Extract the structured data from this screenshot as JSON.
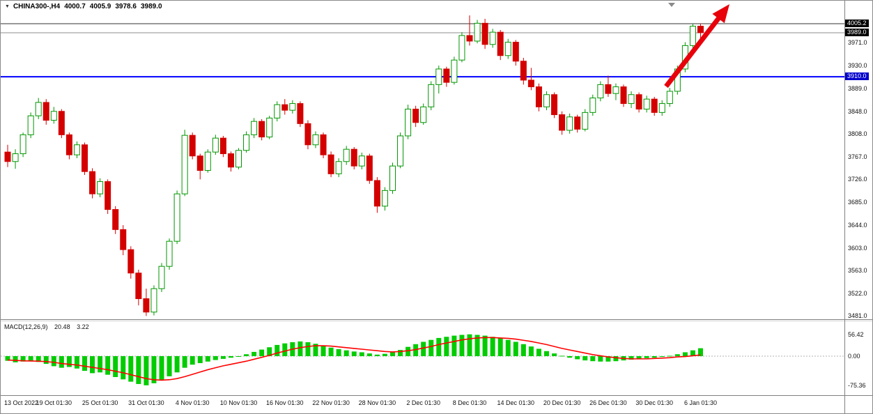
{
  "header": {
    "dropdown_icon": "▼",
    "symbol": "CHINA300-,H4",
    "ohlc": {
      "open": "4000.7",
      "high": "4005.9",
      "low": "3978.6",
      "close": "3989.0"
    }
  },
  "indicator_panel": {
    "label": "MACD(12,26,9)",
    "main_value": "20.48",
    "signal_value": "3.22",
    "axis_values": [
      56.42,
      0,
      -75.36
    ]
  },
  "price_axis": {
    "ticks": [
      3971.0,
      3930.0,
      3889.0,
      3848.0,
      3808.0,
      3767.0,
      3726.0,
      3685.0,
      3644.0,
      3603.0,
      3563.0,
      3522.0,
      3481.0
    ],
    "badges": [
      {
        "value": 4005.2,
        "bg": "#000000",
        "fg": "#ffffff"
      },
      {
        "value": 3989.0,
        "bg": "#000000",
        "fg": "#ffffff"
      },
      {
        "value": 3910.0,
        "bg": "#0000cc",
        "fg": "#ffffff"
      }
    ]
  },
  "time_axis": {
    "labels": [
      {
        "text": "13 Oct 2022",
        "index": 0
      },
      {
        "text": "19 Oct 01:30",
        "index": 6
      },
      {
        "text": "25 Oct 01:30",
        "index": 12
      },
      {
        "text": "31 Oct 01:30",
        "index": 18
      },
      {
        "text": "4 Nov 01:30",
        "index": 24
      },
      {
        "text": "10 Nov 01:30",
        "index": 30
      },
      {
        "text": "16 Nov 01:30",
        "index": 36
      },
      {
        "text": "22 Nov 01:30",
        "index": 42
      },
      {
        "text": "28 Nov 01:30",
        "index": 48
      },
      {
        "text": "2 Dec 01:30",
        "index": 54
      },
      {
        "text": "8 Dec 01:30",
        "index": 60
      },
      {
        "text": "14 Dec 01:30",
        "index": 66
      },
      {
        "text": "20 Dec 01:30",
        "index": 72
      },
      {
        "text": "26 Dec 01:30",
        "index": 78
      },
      {
        "text": "30 Dec 01:30",
        "index": 84
      },
      {
        "text": "6 Jan 01:30",
        "index": 90
      }
    ]
  },
  "colors": {
    "up": "#009600",
    "up_fill": "#ffffff",
    "down": "#d40000",
    "macd_bar": "#00cc00",
    "signal": "#ff0000",
    "blue_line": "#0000ff",
    "high_line": "#333333",
    "bid_line": "#8c8c8c",
    "arrow": "#e8000b",
    "frame": "#808080"
  },
  "chart_data": {
    "type": "candlestick",
    "symbol": "CHINA300-",
    "timeframe": "H4",
    "title": "CHINA300-,H4 4000.7 4005.9 3978.6 3989.0",
    "ylim": [
      3460,
      4046
    ],
    "grid": false,
    "price_lines": [
      {
        "value": 4005.2,
        "role": "session-high"
      },
      {
        "value": 3989.0,
        "role": "bid"
      },
      {
        "value": 3910.0,
        "role": "support"
      }
    ],
    "candles": [
      [
        3775,
        3788,
        3748,
        3758
      ],
      [
        3758,
        3780,
        3745,
        3772
      ],
      [
        3772,
        3810,
        3766,
        3806
      ],
      [
        3806,
        3846,
        3800,
        3840
      ],
      [
        3840,
        3872,
        3834,
        3864
      ],
      [
        3864,
        3870,
        3824,
        3832
      ],
      [
        3832,
        3856,
        3826,
        3848
      ],
      [
        3848,
        3852,
        3800,
        3806
      ],
      [
        3806,
        3810,
        3762,
        3770
      ],
      [
        3770,
        3794,
        3764,
        3788
      ],
      [
        3788,
        3792,
        3734,
        3740
      ],
      [
        3740,
        3746,
        3692,
        3700
      ],
      [
        3700,
        3728,
        3694,
        3722
      ],
      [
        3722,
        3726,
        3664,
        3672
      ],
      [
        3672,
        3678,
        3628,
        3636
      ],
      [
        3636,
        3644,
        3590,
        3600
      ],
      [
        3600,
        3606,
        3548,
        3558
      ],
      [
        3558,
        3564,
        3500,
        3512
      ],
      [
        3512,
        3530,
        3481,
        3488
      ],
      [
        3488,
        3536,
        3482,
        3530
      ],
      [
        3530,
        3576,
        3524,
        3570
      ],
      [
        3570,
        3620,
        3564,
        3615
      ],
      [
        3615,
        3706,
        3610,
        3700
      ],
      [
        3700,
        3815,
        3696,
        3805
      ],
      [
        3805,
        3810,
        3762,
        3768
      ],
      [
        3768,
        3772,
        3726,
        3742
      ],
      [
        3742,
        3780,
        3738,
        3775
      ],
      [
        3775,
        3806,
        3770,
        3800
      ],
      [
        3800,
        3804,
        3766,
        3772
      ],
      [
        3772,
        3776,
        3740,
        3748
      ],
      [
        3748,
        3782,
        3744,
        3778
      ],
      [
        3778,
        3812,
        3774,
        3806
      ],
      [
        3806,
        3836,
        3800,
        3830
      ],
      [
        3830,
        3834,
        3796,
        3802
      ],
      [
        3802,
        3840,
        3798,
        3836
      ],
      [
        3836,
        3866,
        3830,
        3860
      ],
      [
        3860,
        3870,
        3842,
        3850
      ],
      [
        3850,
        3868,
        3844,
        3862
      ],
      [
        3862,
        3866,
        3820,
        3826
      ],
      [
        3826,
        3832,
        3780,
        3788
      ],
      [
        3788,
        3812,
        3782,
        3806
      ],
      [
        3806,
        3810,
        3764,
        3770
      ],
      [
        3770,
        3776,
        3730,
        3736
      ],
      [
        3736,
        3764,
        3730,
        3758
      ],
      [
        3758,
        3786,
        3752,
        3780
      ],
      [
        3780,
        3784,
        3744,
        3750
      ],
      [
        3750,
        3774,
        3744,
        3768
      ],
      [
        3768,
        3772,
        3718,
        3724
      ],
      [
        3724,
        3730,
        3666,
        3678
      ],
      [
        3678,
        3712,
        3670,
        3706
      ],
      [
        3706,
        3756,
        3700,
        3750
      ],
      [
        3750,
        3810,
        3746,
        3804
      ],
      [
        3804,
        3860,
        3798,
        3852
      ],
      [
        3852,
        3858,
        3820,
        3828
      ],
      [
        3828,
        3862,
        3824,
        3856
      ],
      [
        3856,
        3902,
        3850,
        3896
      ],
      [
        3896,
        3930,
        3880,
        3924
      ],
      [
        3924,
        3928,
        3892,
        3900
      ],
      [
        3900,
        3946,
        3896,
        3940
      ],
      [
        3940,
        3990,
        3936,
        3984
      ],
      [
        3984,
        4020,
        3966,
        3974
      ],
      [
        3974,
        4012,
        3970,
        4006
      ],
      [
        4006,
        4014,
        3960,
        3968
      ],
      [
        3968,
        3996,
        3962,
        3990
      ],
      [
        3990,
        3994,
        3940,
        3948
      ],
      [
        3948,
        3978,
        3942,
        3972
      ],
      [
        3972,
        3976,
        3930,
        3938
      ],
      [
        3938,
        3944,
        3896,
        3904
      ],
      [
        3904,
        3926,
        3886,
        3892
      ],
      [
        3892,
        3898,
        3848,
        3856
      ],
      [
        3856,
        3884,
        3850,
        3878
      ],
      [
        3878,
        3882,
        3836,
        3842
      ],
      [
        3842,
        3848,
        3806,
        3814
      ],
      [
        3814,
        3844,
        3808,
        3838
      ],
      [
        3838,
        3842,
        3810,
        3816
      ],
      [
        3816,
        3852,
        3812,
        3846
      ],
      [
        3846,
        3878,
        3840,
        3872
      ],
      [
        3872,
        3902,
        3866,
        3896
      ],
      [
        3896,
        3912,
        3874,
        3880
      ],
      [
        3880,
        3898,
        3868,
        3892
      ],
      [
        3892,
        3896,
        3856,
        3862
      ],
      [
        3862,
        3884,
        3854,
        3878
      ],
      [
        3878,
        3882,
        3846,
        3852
      ],
      [
        3852,
        3876,
        3846,
        3870
      ],
      [
        3870,
        3874,
        3840,
        3846
      ],
      [
        3846,
        3868,
        3840,
        3862
      ],
      [
        3862,
        3890,
        3856,
        3884
      ],
      [
        3884,
        3930,
        3878,
        3924
      ],
      [
        3924,
        3972,
        3918,
        3966
      ],
      [
        3966,
        4005.2,
        3960,
        4000.7
      ],
      [
        4000.7,
        4005.9,
        3978.6,
        3989.0
      ]
    ],
    "macd": {
      "params": "12,26,9",
      "ylim": [
        -75.36,
        56.42
      ],
      "histogram": [
        -12,
        -16,
        -14,
        -12,
        -15,
        -20,
        -26,
        -30,
        -28,
        -32,
        -38,
        -44,
        -42,
        -48,
        -54,
        -60,
        -66,
        -72,
        -75.36,
        -70,
        -62,
        -52,
        -42,
        -30,
        -22,
        -18,
        -14,
        -10,
        -7,
        -4,
        0,
        5,
        11,
        17,
        23,
        29,
        33,
        36,
        38,
        36,
        32,
        27,
        22,
        18,
        15,
        12,
        10,
        7,
        4,
        6,
        10,
        16,
        24,
        31,
        37,
        42,
        47,
        50,
        53,
        55,
        56.42,
        55,
        53,
        50,
        46,
        42,
        37,
        31,
        25,
        19,
        13,
        7,
        1,
        -4,
        -8,
        -11,
        -13,
        -14,
        -14,
        -13,
        -11,
        -9,
        -7,
        -5,
        -4,
        -2,
        1,
        5,
        10,
        15,
        20.48
      ],
      "signal": [
        -10,
        -11,
        -12,
        -12.5,
        -13,
        -14,
        -16,
        -19,
        -21,
        -23,
        -26,
        -29,
        -32,
        -35,
        -39,
        -43,
        -48,
        -53,
        -58,
        -61,
        -62,
        -61,
        -58,
        -53,
        -47,
        -41,
        -35,
        -30,
        -25,
        -21,
        -17,
        -13,
        -8,
        -3,
        2,
        8,
        13,
        18,
        22,
        25,
        27,
        27,
        26,
        24,
        22,
        20,
        18,
        16,
        14,
        12,
        11,
        12,
        14,
        17,
        21,
        25,
        30,
        34,
        38,
        42,
        45,
        47,
        48,
        48,
        47,
        46,
        44,
        41,
        38,
        34,
        30,
        25,
        20,
        16,
        12,
        8,
        4,
        1,
        -2,
        -4,
        -6,
        -7,
        -7,
        -7,
        -6,
        -5,
        -4,
        -2,
        -1,
        1,
        3.22
      ]
    },
    "annotations": [
      {
        "type": "arrow",
        "from": [
          955,
          123
        ],
        "to": [
          1046,
          5
        ]
      },
      {
        "type": "triangle-marker",
        "at": [
          963,
          3
        ]
      }
    ]
  }
}
